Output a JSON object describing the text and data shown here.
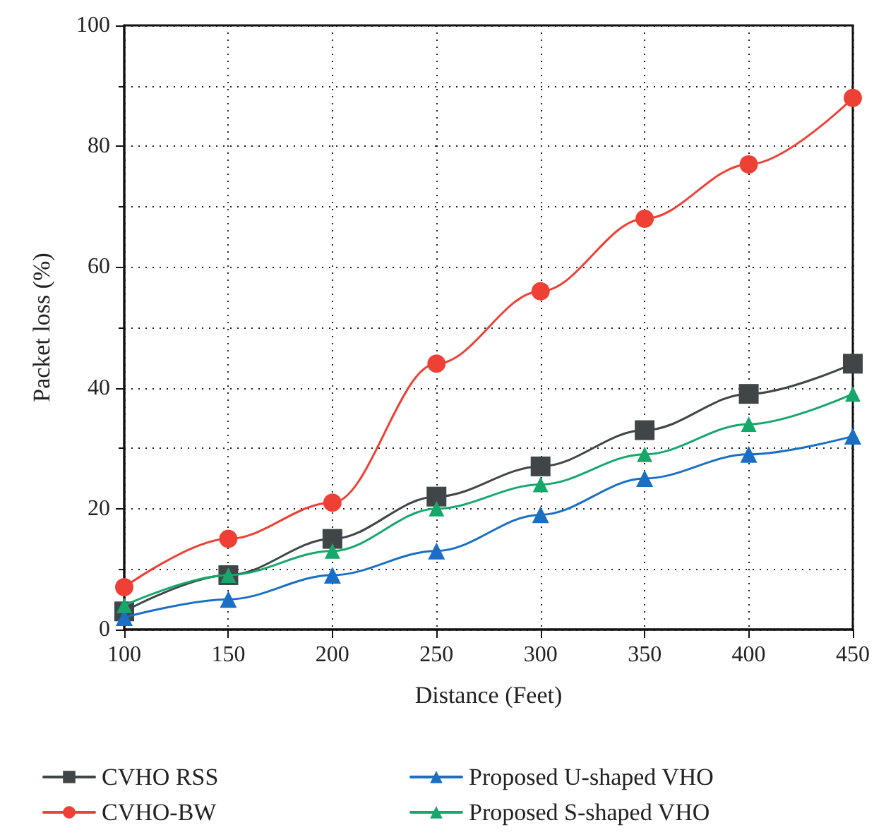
{
  "chart_data": {
    "type": "line",
    "xlabel": "Distance (Feet)",
    "ylabel": "Packet loss (%)",
    "x": [
      100,
      150,
      200,
      250,
      300,
      350,
      400,
      450
    ],
    "series": [
      {
        "name": "CVHO RSS",
        "color": "#404548",
        "marker": "square",
        "values": [
          3,
          9,
          15,
          22,
          27,
          33,
          39,
          44
        ]
      },
      {
        "name": "CVHO-BW",
        "color": "#ee4035",
        "marker": "circle",
        "values": [
          7,
          15,
          21,
          44,
          56,
          68,
          77,
          88
        ]
      },
      {
        "name": "Proposed U-shaped VHO",
        "color": "#1a6fc4",
        "marker": "triangle",
        "values": [
          2,
          5,
          9,
          13,
          19,
          25,
          29,
          32
        ]
      },
      {
        "name": "Proposed S-shaped VHO",
        "color": "#16a86a",
        "marker": "triangle",
        "values": [
          4,
          9,
          13,
          20,
          24,
          29,
          34,
          39
        ]
      }
    ],
    "xlim": [
      100,
      450
    ],
    "xticks": [
      100,
      150,
      200,
      250,
      300,
      350,
      400,
      450
    ],
    "ylim": [
      0,
      100
    ],
    "yticks": [
      0,
      20,
      40,
      60,
      80,
      100
    ],
    "grid": true,
    "legend": "bottom",
    "line_style": "solid"
  }
}
